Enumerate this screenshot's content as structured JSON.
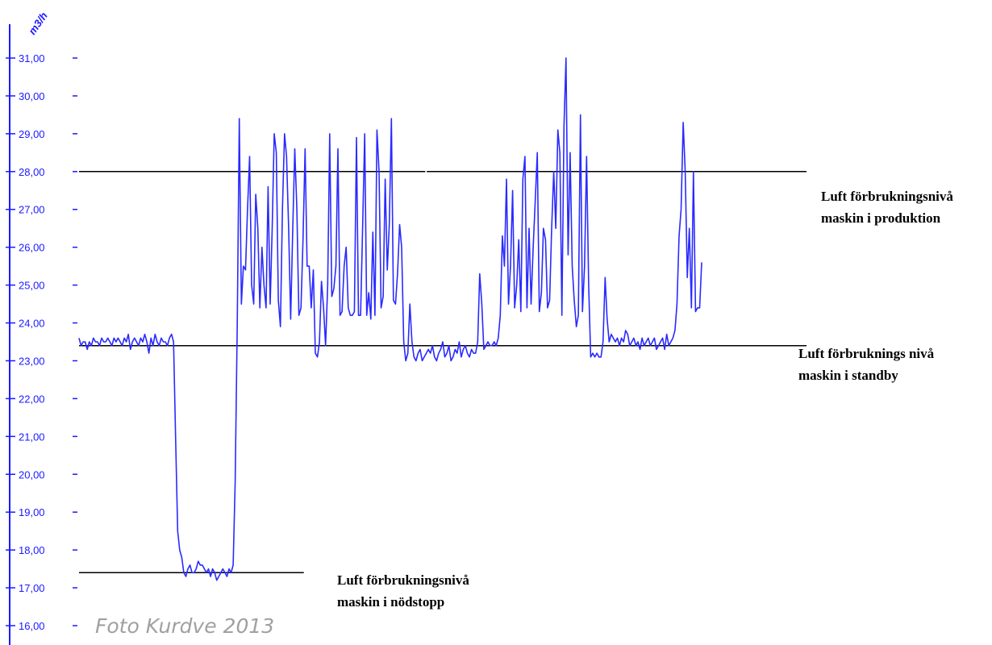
{
  "chart_data": {
    "type": "line",
    "ylabel": "m3/h",
    "ylim": [
      15.5,
      31.5
    ],
    "y_ticks": [
      "31,00",
      "30,00",
      "29,00",
      "28,00",
      "27,00",
      "26,00",
      "25,00",
      "24,00",
      "23,00",
      "22,00",
      "21,00",
      "20,00",
      "19,00",
      "18,00",
      "17,00",
      "16,00"
    ],
    "y_tick_values": [
      31,
      30,
      29,
      28,
      27,
      26,
      25,
      24,
      23,
      22,
      21,
      20,
      19,
      18,
      17,
      16
    ],
    "grid": false,
    "series": [
      {
        "color": "#2a2aff",
        "values": [
          23.6,
          23.4,
          23.5,
          23.5,
          23.3,
          23.5,
          23.4,
          23.6,
          23.5,
          23.5,
          23.4,
          23.6,
          23.5,
          23.5,
          23.6,
          23.5,
          23.4,
          23.6,
          23.5,
          23.6,
          23.5,
          23.4,
          23.6,
          23.5,
          23.7,
          23.3,
          23.5,
          23.6,
          23.5,
          23.4,
          23.6,
          23.5,
          23.7,
          23.5,
          23.2,
          23.6,
          23.4,
          23.7,
          23.5,
          23.4,
          23.6,
          23.5,
          23.5,
          23.4,
          23.6,
          23.7,
          23.5,
          21.0,
          18.5,
          18.0,
          17.8,
          17.4,
          17.3,
          17.5,
          17.6,
          17.4,
          17.4,
          17.5,
          17.7,
          17.6,
          17.6,
          17.5,
          17.4,
          17.5,
          17.3,
          17.5,
          17.4,
          17.2,
          17.3,
          17.4,
          17.5,
          17.4,
          17.3,
          17.5,
          17.4,
          17.6,
          19.8,
          24.0,
          29.4,
          24.5,
          25.5,
          25.4,
          27.0,
          28.4,
          25.0,
          24.5,
          27.4,
          26.5,
          24.4,
          26.0,
          25.0,
          24.4,
          27.6,
          24.5,
          26.5,
          29.0,
          28.5,
          24.6,
          23.9,
          27.0,
          29.0,
          28.4,
          26.5,
          24.1,
          26.5,
          28.6,
          27.0,
          24.2,
          24.4,
          26.2,
          28.6,
          25.5,
          25.5,
          24.4,
          25.4,
          23.2,
          23.1,
          23.5,
          25.1,
          24.4,
          23.4,
          25.0,
          29.0,
          24.7,
          24.9,
          25.5,
          28.6,
          24.2,
          24.3,
          25.5,
          26.0,
          24.4,
          24.2,
          24.2,
          24.3,
          28.9,
          24.2,
          24.2,
          26.5,
          29.0,
          24.2,
          24.8,
          24.1,
          26.4,
          24.2,
          29.1,
          28.0,
          24.4,
          24.7,
          27.8,
          25.4,
          26.6,
          29.4,
          24.6,
          24.5,
          25.3,
          26.6,
          26.0,
          23.5,
          23.0,
          23.2,
          24.5,
          23.5,
          23.1,
          23.0,
          23.2,
          23.3,
          23.0,
          23.1,
          23.2,
          23.3,
          23.2,
          23.4,
          23.1,
          23.0,
          23.2,
          23.3,
          23.5,
          23.1,
          23.2,
          23.4,
          23.0,
          23.1,
          23.3,
          23.2,
          23.5,
          23.1,
          23.3,
          23.4,
          23.2,
          23.1,
          23.3,
          23.2,
          23.2,
          23.5,
          25.3,
          24.5,
          23.3,
          23.4,
          23.5,
          23.4,
          23.4,
          23.5,
          23.4,
          23.6,
          24.2,
          26.3,
          25.5,
          27.8,
          24.5,
          25.5,
          27.5,
          24.4,
          25.0,
          26.2,
          24.3,
          27.8,
          28.4,
          24.4,
          26.5,
          24.5,
          26.0,
          27.2,
          28.5,
          24.3,
          24.8,
          26.5,
          26.2,
          24.4,
          24.6,
          26.5,
          28.0,
          26.5,
          29.1,
          28.5,
          24.2,
          29.2,
          31.0,
          25.8,
          28.5,
          25.5,
          24.6,
          23.9,
          24.2,
          29.5,
          24.3,
          25.5,
          28.4,
          25.0,
          23.1,
          23.2,
          23.1,
          23.2,
          23.1,
          23.1,
          23.5,
          25.2,
          24.1,
          23.5,
          23.7,
          23.6,
          23.5,
          23.6,
          23.4,
          23.6,
          23.5,
          23.8,
          23.7,
          23.4,
          23.5,
          23.6,
          23.4,
          23.5,
          23.3,
          23.6,
          23.4,
          23.5,
          23.6,
          23.4,
          23.5,
          23.6,
          23.3,
          23.4,
          23.5,
          23.6,
          23.3,
          23.7,
          23.4,
          23.5,
          23.6,
          23.8,
          24.5,
          26.3,
          27.0,
          29.3,
          28.0,
          25.2,
          26.5,
          24.4,
          28.0,
          24.3,
          24.4,
          24.4,
          25.6
        ]
      }
    ],
    "reference_lines": [
      {
        "y": 28.0,
        "x_from": 0.0,
        "x_to": 0.476
      },
      {
        "y": 28.0,
        "x_from": 0.478,
        "x_to": 1.0
      },
      {
        "y": 23.4,
        "x_from": 0.0,
        "x_to": 1.0
      },
      {
        "y": 17.4,
        "x_from": 0.0,
        "x_to": 0.309
      }
    ]
  },
  "annotations": {
    "production": {
      "line1": "Luft förbrukningsnivå",
      "line2": "maskin i produktion"
    },
    "standby": {
      "line1": "Luft förbruknings nivå",
      "line2": "maskin i standby"
    },
    "nodstopp": {
      "line1": "Luft förbrukningsnivå",
      "line2": "maskin i nödstopp"
    }
  },
  "credit": "Foto Kurdve 2013",
  "colors": {
    "axis": "#1a1aff",
    "series": "#2a2aff",
    "reference": "#000000"
  }
}
